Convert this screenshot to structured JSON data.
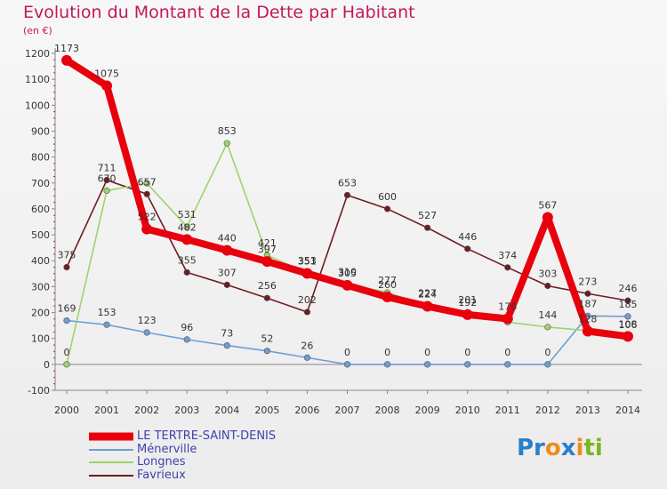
{
  "header": {
    "title": "Evolution du Montant de la Dette par Habitant",
    "unit": "(en €)"
  },
  "logo": {
    "text": "Proxiti"
  },
  "chart_data": {
    "type": "line",
    "title": "Evolution du Montant de la Dette par Habitant",
    "ylabel": "(en €)",
    "xlabel": "",
    "x": [
      "2000",
      "2001",
      "2002",
      "2003",
      "2004",
      "2005",
      "2006",
      "2007",
      "2008",
      "2009",
      "2010",
      "2011",
      "2012",
      "2013",
      "2014"
    ],
    "ylim": [
      -100,
      1200
    ],
    "yticks": [
      -100,
      0,
      100,
      200,
      300,
      400,
      500,
      600,
      700,
      800,
      900,
      1000,
      1100,
      1200
    ],
    "grid": false,
    "legend_position": "bottom-left",
    "series": [
      {
        "name": "LE TERTRE-SAINT-DENIS",
        "color": "#e8000d",
        "values": [
          1173,
          1075,
          522,
          482,
          440,
          397,
          351,
          305,
          260,
          224,
          192,
          176,
          567,
          128,
          108
        ],
        "labels": [
          "1173",
          "1075",
          "522",
          "482",
          "440",
          "397",
          "351",
          "305",
          "260",
          "224",
          "192",
          "176",
          "567",
          "128",
          "108"
        ]
      },
      {
        "name": "Ménerville",
        "color": "#6b9fd4",
        "values": [
          169,
          153,
          123,
          96,
          73,
          52,
          26,
          0,
          0,
          0,
          0,
          0,
          0,
          187,
          185
        ],
        "labels": [
          "169",
          "153",
          "123",
          "96",
          "73",
          "52",
          "26",
          "0",
          "0",
          "0",
          "0",
          "0",
          "0",
          "187",
          "185"
        ]
      },
      {
        "name": "Longnes",
        "color": "#9ed36a",
        "values": [
          0,
          670,
          699,
          531,
          853,
          421,
          353,
          310,
          277,
          227,
          201,
          163,
          144,
          130,
          106
        ],
        "labels": [
          "0",
          "670",
          "",
          "531",
          "853",
          "421",
          "353",
          "310",
          "277",
          "227",
          "201",
          "",
          "144",
          "",
          "106"
        ]
      },
      {
        "name": "Favrieux",
        "color": "#6e1c22",
        "values": [
          375,
          711,
          657,
          355,
          307,
          256,
          202,
          653,
          600,
          527,
          446,
          374,
          303,
          273,
          246
        ],
        "labels": [
          "375",
          "711",
          "657",
          "355",
          "307",
          "256",
          "202",
          "653",
          "600",
          "527",
          "446",
          "374",
          "303",
          "273",
          "246"
        ]
      }
    ]
  }
}
